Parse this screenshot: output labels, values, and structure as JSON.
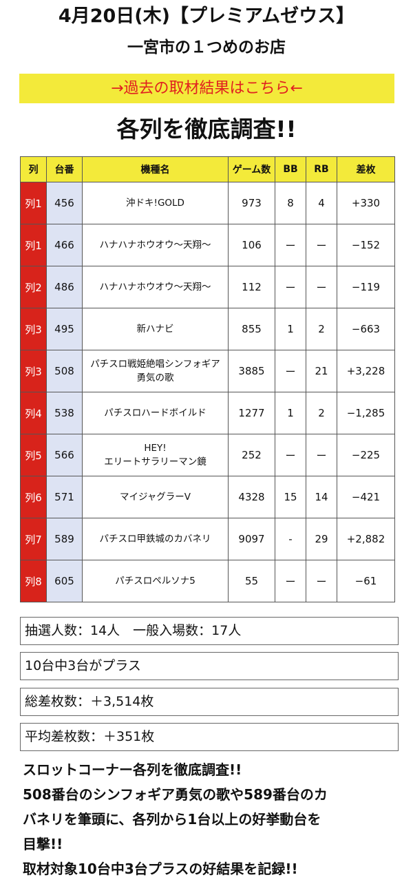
{
  "header": {
    "date_line": "4月20日(木)【プレミアムゼウス】",
    "store_line": "一宮市の１つめのお店",
    "past_link": "→過去の取材結果はこちら←",
    "survey_title": "各列を徹底調査!!"
  },
  "table": {
    "headers": [
      "列",
      "台番",
      "機種名",
      "ゲーム数",
      "BB",
      "RB",
      "差枚"
    ],
    "rows": [
      {
        "col": "列1",
        "num": "456",
        "name": [
          "沖ドキ!GOLD"
        ],
        "games": "973",
        "bb": "8",
        "rb": "4",
        "diff": "+330"
      },
      {
        "col": "列1",
        "num": "466",
        "name": [
          "ハナハナホウオウ〜天翔〜"
        ],
        "games": "106",
        "bb": "ー",
        "rb": "ー",
        "diff": "−152"
      },
      {
        "col": "列2",
        "num": "486",
        "name": [
          "ハナハナホウオウ〜天翔〜"
        ],
        "games": "112",
        "bb": "ー",
        "rb": "ー",
        "diff": "−119"
      },
      {
        "col": "列3",
        "num": "495",
        "name": [
          "新ハナビ"
        ],
        "games": "855",
        "bb": "1",
        "rb": "2",
        "diff": "−663"
      },
      {
        "col": "列3",
        "num": "508",
        "name": [
          "パチスロ戦姫絶唱シンフォギア",
          "勇気の歌"
        ],
        "games": "3885",
        "bb": "ー",
        "rb": "21",
        "diff": "+3,228"
      },
      {
        "col": "列4",
        "num": "538",
        "name": [
          "パチスロハードボイルド"
        ],
        "games": "1277",
        "bb": "1",
        "rb": "2",
        "diff": "−1,285"
      },
      {
        "col": "列5",
        "num": "566",
        "name": [
          "HEY!",
          "エリートサラリーマン鏡"
        ],
        "games": "252",
        "bb": "ー",
        "rb": "ー",
        "diff": "−225"
      },
      {
        "col": "列6",
        "num": "571",
        "name": [
          "マイジャグラーV"
        ],
        "games": "4328",
        "bb": "15",
        "rb": "14",
        "diff": "−421"
      },
      {
        "col": "列7",
        "num": "589",
        "name": [
          "パチスロ甲鉄城のカバネリ"
        ],
        "games": "9097",
        "bb": "-",
        "rb": "29",
        "diff": "+2,882"
      },
      {
        "col": "列8",
        "num": "605",
        "name": [
          "パチスロペルソナ5"
        ],
        "games": "55",
        "bb": "ー",
        "rb": "ー",
        "diff": "−61"
      }
    ]
  },
  "summary": {
    "participants": "抽選人数：14人　一般入場数：17人",
    "plus_count": "10台中3台がプラス",
    "total_diff": "総差枚数：＋3,514枚",
    "avg_diff": "平均差枚数：＋351枚"
  },
  "comment": [
    "スロットコーナー各列を徹底調査!!",
    "508番台のシンフォギア勇気の歌や589番台のカ",
    "バネリを筆頭に、各列から1台以上の好挙動台を",
    "目撃!!",
    "取材対象10台中3台プラスの好結果を記録!!"
  ],
  "colors": {
    "banner_yellow": "#f3ea3a",
    "link_red": "#e02020",
    "row_red": "#d8231b",
    "num_blue": "#dde3f3"
  }
}
